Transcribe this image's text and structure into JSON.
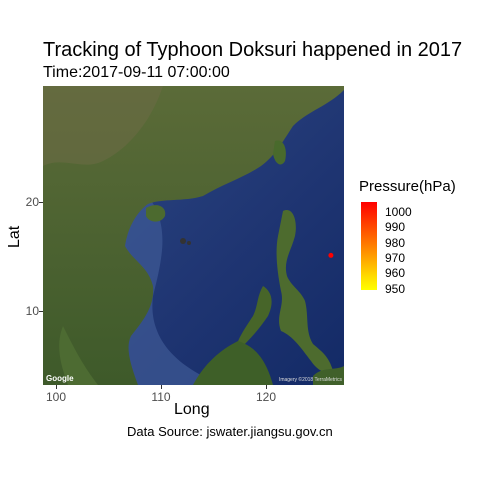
{
  "title": "Tracking of Typhoon Doksuri happened in 2017",
  "subtitle": "Time:2017-09-11 07:00:00",
  "axes": {
    "xlabel": "Long",
    "ylabel": "Lat",
    "x_ticks": [
      "100",
      "110",
      "120"
    ],
    "y_ticks": [
      "20",
      "10"
    ]
  },
  "map": {
    "google_logo": "Google",
    "imagery_credit": "Imagery ©2018 TerraMetrics",
    "extent": {
      "lon": [
        99.5,
        127
      ],
      "lat": [
        3,
        30
      ]
    },
    "track": [
      {
        "lon": 125.8,
        "lat": 14.7,
        "pressure": 1000
      }
    ]
  },
  "legend": {
    "title": "Pressure(hPa)",
    "labels": [
      "1000",
      "990",
      "980",
      "970",
      "960",
      "950"
    ],
    "color_high": "#ff0000",
    "color_low": "#ffff00"
  },
  "caption": "Data Source: jswater.jiangsu.gov.cn"
}
